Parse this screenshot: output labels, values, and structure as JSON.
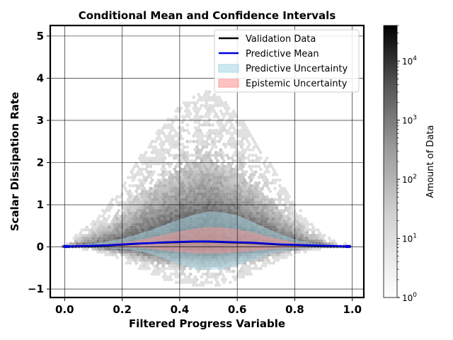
{
  "chart_data": {
    "type": "hexbin",
    "title": "Conditional Mean and Confidence Intervals",
    "xlabel": "Filtered Progress Variable",
    "ylabel": "Scalar Dissipation Rate",
    "xlim": [
      -0.05,
      1.04
    ],
    "ylim": [
      -1.2,
      5.25
    ],
    "xticks": [
      0.0,
      0.2,
      0.4,
      0.6,
      0.8,
      1.0
    ],
    "xtick_labels": [
      "0.0",
      "0.2",
      "0.4",
      "0.6",
      "0.8",
      "1.0"
    ],
    "yticks": [
      -1,
      0,
      1,
      2,
      3,
      4,
      5
    ],
    "ytick_labels": [
      "−1",
      "0",
      "1",
      "2",
      "3",
      "4",
      "5"
    ],
    "grid": true,
    "legend_position": "top-right",
    "colormap": "Greys",
    "colorbar": {
      "label": "Amount of Data",
      "scale": "log",
      "range": [
        1,
        40000
      ],
      "tick_values": [
        1,
        10,
        100,
        1000,
        10000
      ],
      "tick_labels": [
        "10^0",
        "10^1",
        "10^2",
        "10^3",
        "10^4"
      ]
    },
    "series": [
      {
        "name": "Validation Data",
        "kind": "line",
        "color": "#000000",
        "x": [
          0.0,
          0.05,
          0.1,
          0.15,
          0.2,
          0.25,
          0.3,
          0.35,
          0.4,
          0.45,
          0.5,
          0.55,
          0.6,
          0.65,
          0.7,
          0.75,
          0.8,
          0.85,
          0.9,
          0.95,
          0.99
        ],
        "y": [
          0.0,
          0.01,
          0.02,
          0.03,
          0.05,
          0.07,
          0.09,
          0.1,
          0.11,
          0.12,
          0.12,
          0.11,
          0.1,
          0.09,
          0.07,
          0.05,
          0.04,
          0.03,
          0.02,
          0.01,
          0.0
        ]
      },
      {
        "name": "Predictive Mean",
        "kind": "line",
        "color": "#0000dd",
        "x": [
          0.0,
          0.05,
          0.1,
          0.15,
          0.2,
          0.25,
          0.3,
          0.35,
          0.4,
          0.45,
          0.5,
          0.55,
          0.6,
          0.65,
          0.7,
          0.75,
          0.8,
          0.85,
          0.9,
          0.95,
          0.99
        ],
        "y": [
          0.01,
          0.02,
          0.03,
          0.04,
          0.06,
          0.08,
          0.09,
          0.11,
          0.12,
          0.13,
          0.13,
          0.12,
          0.11,
          0.1,
          0.08,
          0.06,
          0.05,
          0.04,
          0.03,
          0.02,
          0.01
        ]
      },
      {
        "name": "Predictive Uncertainty",
        "kind": "band",
        "color": "#add8e6",
        "x": [
          0.0,
          0.05,
          0.1,
          0.15,
          0.2,
          0.25,
          0.3,
          0.35,
          0.4,
          0.45,
          0.5,
          0.55,
          0.6,
          0.65,
          0.7,
          0.75,
          0.8,
          0.85,
          0.9,
          0.95,
          0.99
        ],
        "upper": [
          0.02,
          0.04,
          0.08,
          0.13,
          0.2,
          0.29,
          0.4,
          0.53,
          0.65,
          0.76,
          0.84,
          0.82,
          0.75,
          0.6,
          0.45,
          0.3,
          0.18,
          0.1,
          0.05,
          0.03,
          0.02
        ],
        "lower": [
          0.0,
          0.0,
          -0.01,
          -0.02,
          -0.05,
          -0.09,
          -0.17,
          -0.28,
          -0.42,
          -0.52,
          -0.55,
          -0.52,
          -0.44,
          -0.32,
          -0.2,
          -0.11,
          -0.05,
          -0.02,
          -0.01,
          0.0,
          0.0
        ]
      },
      {
        "name": "Epistemic Uncertainty",
        "kind": "band",
        "color": "#ff9999",
        "x": [
          0.0,
          0.05,
          0.1,
          0.15,
          0.2,
          0.25,
          0.3,
          0.35,
          0.4,
          0.45,
          0.5,
          0.55,
          0.6,
          0.65,
          0.7,
          0.75,
          0.8,
          0.85,
          0.9,
          0.95,
          0.99
        ],
        "upper": [
          0.02,
          0.03,
          0.05,
          0.07,
          0.1,
          0.15,
          0.22,
          0.3,
          0.37,
          0.43,
          0.47,
          0.46,
          0.42,
          0.35,
          0.26,
          0.18,
          0.11,
          0.06,
          0.04,
          0.03,
          0.02
        ],
        "lower": [
          0.0,
          0.01,
          0.01,
          0.0,
          -0.01,
          -0.02,
          -0.05,
          -0.09,
          -0.12,
          -0.15,
          -0.16,
          -0.15,
          -0.13,
          -0.1,
          -0.07,
          -0.04,
          -0.02,
          0.0,
          0.01,
          0.01,
          0.0
        ]
      }
    ],
    "hexbin_envelope": {
      "x": [
        0.0,
        0.05,
        0.1,
        0.15,
        0.2,
        0.25,
        0.3,
        0.35,
        0.4,
        0.45,
        0.5,
        0.55,
        0.6,
        0.65,
        0.7,
        0.75,
        0.8,
        0.85,
        0.9,
        0.95,
        0.99
      ],
      "upper": [
        0.05,
        0.35,
        0.65,
        1.0,
        1.45,
        2.0,
        2.55,
        2.95,
        3.35,
        3.6,
        3.7,
        3.5,
        3.15,
        2.7,
        2.2,
        1.6,
        1.05,
        0.6,
        0.3,
        0.12,
        0.05
      ],
      "lower": [
        -0.02,
        -0.05,
        -0.1,
        -0.2,
        -0.35,
        -0.5,
        -0.65,
        -0.78,
        -0.88,
        -0.93,
        -0.95,
        -0.9,
        -0.8,
        -0.65,
        -0.48,
        -0.32,
        -0.2,
        -0.1,
        -0.05,
        -0.02,
        -0.01
      ]
    }
  }
}
